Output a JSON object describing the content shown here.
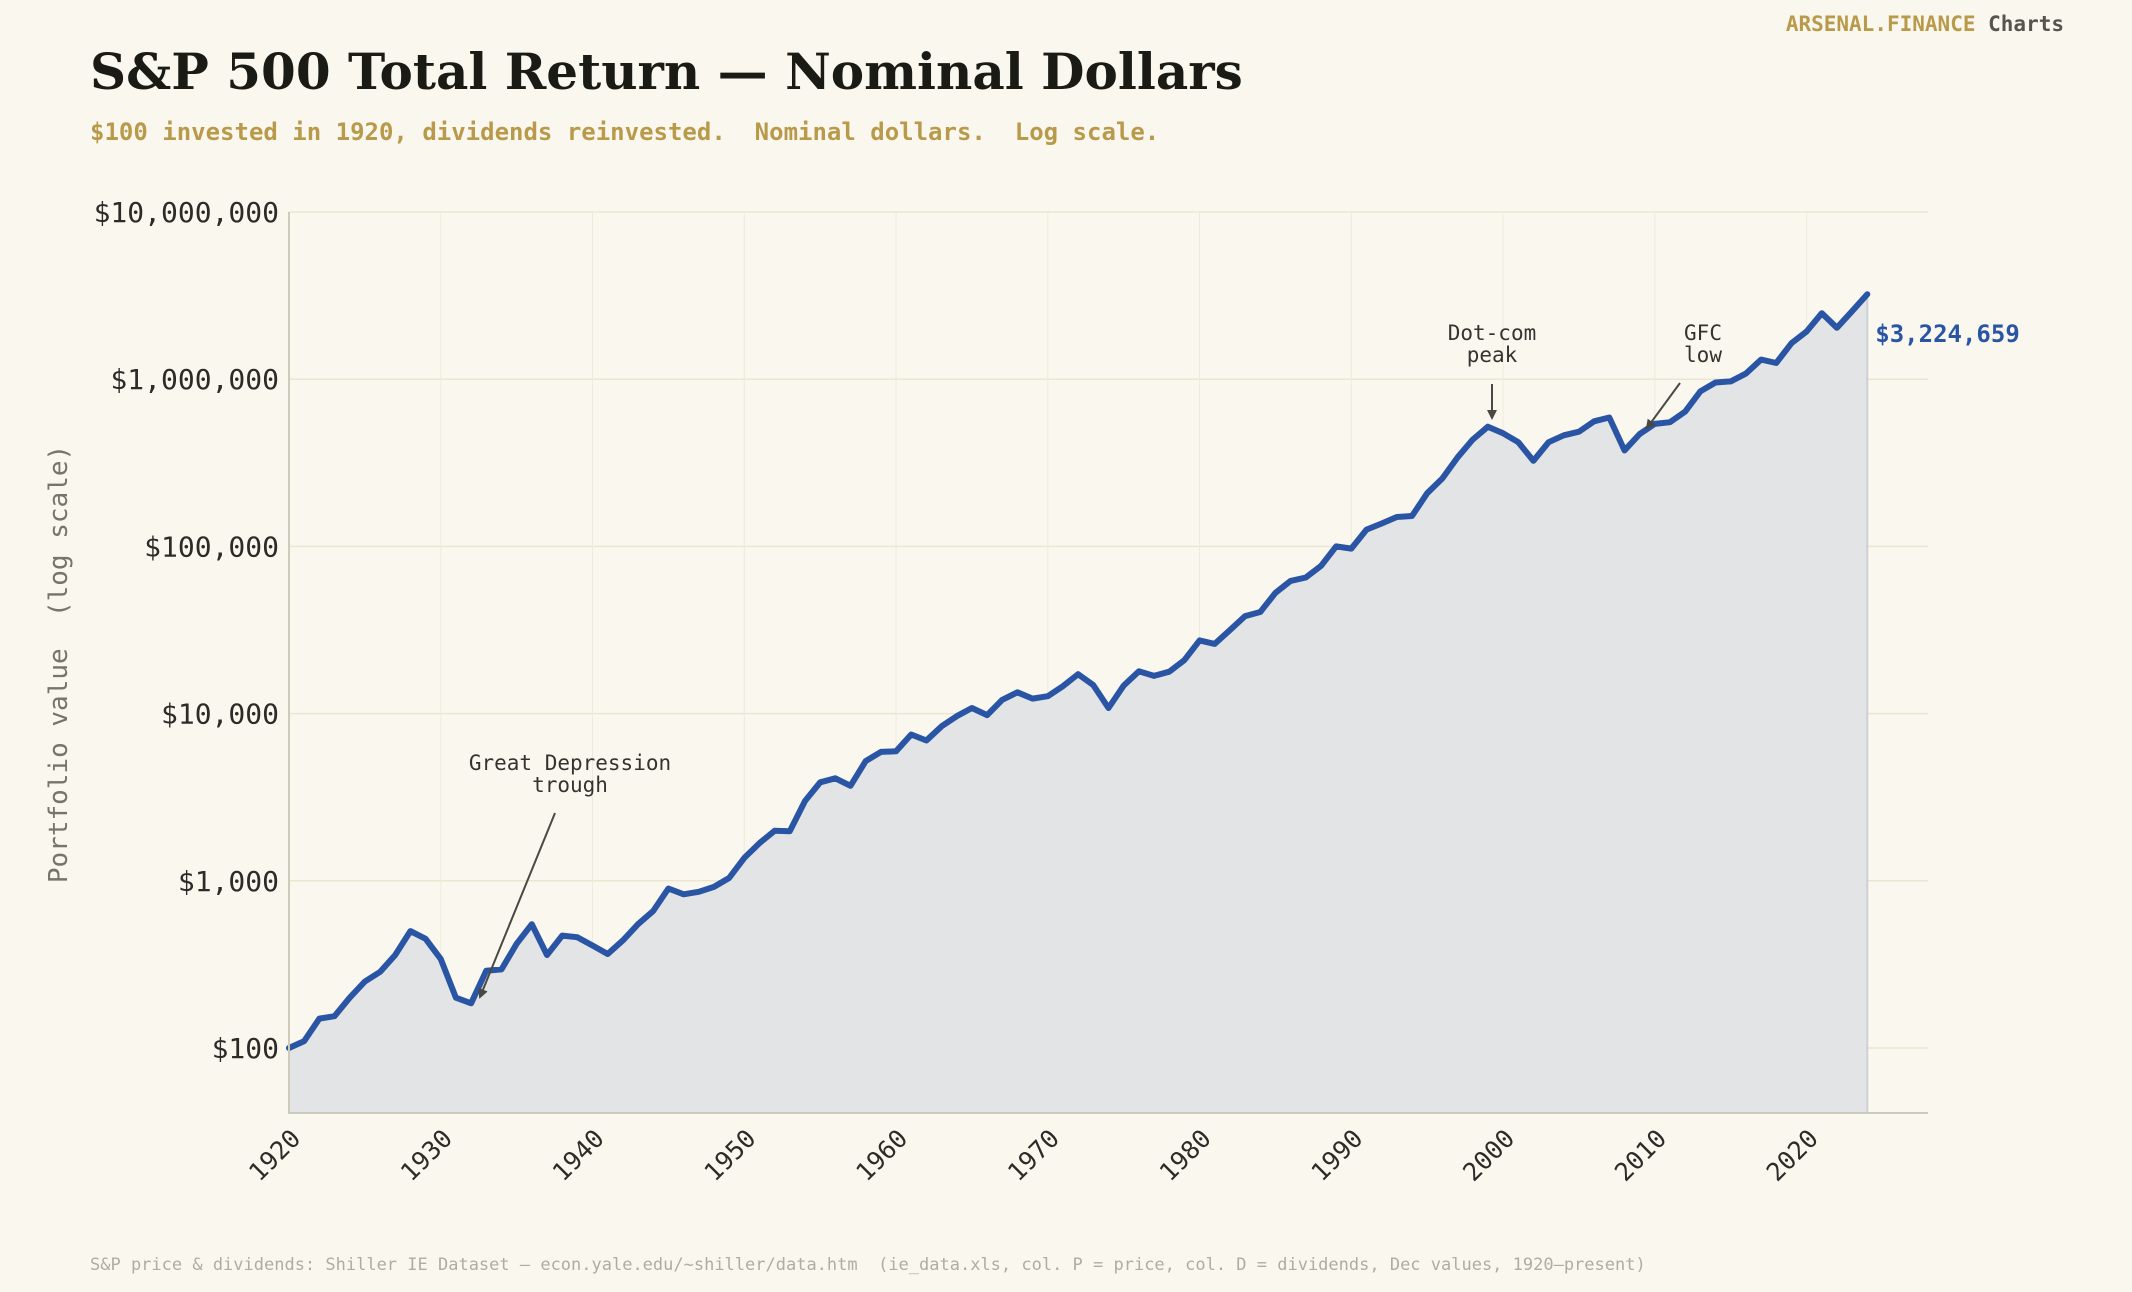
{
  "brand": {
    "name": "ARSENAL.FINANCE",
    "section": "Charts"
  },
  "title": "S&P 500 Total Return — Nominal Dollars",
  "subtitle": "$100 invested in 1920, dividends reinvested.  Nominal dollars.  Log scale.",
  "footer": "S&P price & dividends: Shiller IE Dataset – econ.yale.edu/~shiller/data.htm  (ie_data.xls, col. P = price, col. D = dividends, Dec values, 1920–present)",
  "colors": {
    "line": "#2a55a5",
    "fill": "#e3e4e6",
    "accent": "#b89a4a",
    "background": "#faf7ef"
  },
  "chart_data": {
    "type": "line",
    "ylabel": "Portfolio value  (log scale)",
    "yscale": "log",
    "xlim": [
      1920,
      2028
    ],
    "ylim": [
      40,
      10000000
    ],
    "xticks": [
      1920,
      1930,
      1940,
      1950,
      1960,
      1970,
      1980,
      1990,
      2000,
      2010,
      2020
    ],
    "xtick_labels": [
      "1920",
      "1930",
      "1940",
      "1950",
      "1960",
      "1970",
      "1980",
      "1990",
      "2000",
      "2010",
      "2020"
    ],
    "yticks": [
      100,
      1000,
      10000,
      100000,
      1000000,
      10000000
    ],
    "ytick_labels": [
      "$100",
      "$1,000",
      "$10,000",
      "$100,000",
      "$1,000,000",
      "$10,000,000"
    ],
    "grid": true,
    "end_label": "$3,224,659",
    "annotations": [
      {
        "label": "Great Depression\ntrough",
        "x": 1932,
        "y": 185
      },
      {
        "label": "Dot-com\npeak",
        "x": 1999,
        "y": 520000
      },
      {
        "label": "GFC\nlow",
        "x": 2009,
        "y": 470000
      }
    ],
    "series": [
      {
        "x": [
          1920,
          1921,
          1922,
          1923,
          1924,
          1925,
          1926,
          1927,
          1928,
          1929,
          1930,
          1931,
          1932,
          1933,
          1934,
          1935,
          1936,
          1937,
          1938,
          1939,
          1940,
          1941,
          1942,
          1943,
          1944,
          1945,
          1946,
          1947,
          1948,
          1949,
          1950,
          1951,
          1952,
          1953,
          1954,
          1955,
          1956,
          1957,
          1958,
          1959,
          1960,
          1961,
          1962,
          1963,
          1964,
          1965,
          1966,
          1967,
          1968,
          1969,
          1970,
          1971,
          1972,
          1973,
          1974,
          1975,
          1976,
          1977,
          1978,
          1979,
          1980,
          1981,
          1982,
          1983,
          1984,
          1985,
          1986,
          1987,
          1988,
          1989,
          1990,
          1991,
          1992,
          1993,
          1994,
          1995,
          1996,
          1997,
          1998,
          1999,
          2000,
          2001,
          2002,
          2003,
          2004,
          2005,
          2006,
          2007,
          2008,
          2009,
          2010,
          2011,
          2012,
          2013,
          2014,
          2015,
          2016,
          2017,
          2018,
          2019,
          2020,
          2021,
          2022,
          2023,
          2024
        ],
        "y": [
          100,
          110,
          150,
          155,
          200,
          250,
          285,
          360,
          500,
          450,
          340,
          200,
          185,
          290,
          295,
          420,
          550,
          360,
          470,
          460,
          410,
          365,
          440,
          550,
          660,
          900,
          830,
          860,
          920,
          1040,
          1370,
          1680,
          1990,
          1980,
          3000,
          3880,
          4100,
          3700,
          5200,
          5900,
          5950,
          7500,
          6900,
          8400,
          9650,
          10800,
          9800,
          12100,
          13400,
          12300,
          12700,
          14600,
          17200,
          14800,
          10800,
          14700,
          17900,
          16800,
          17800,
          20900,
          27400,
          26100,
          31600,
          38300,
          40500,
          52700,
          62200,
          65200,
          76400,
          100000,
          97000,
          126000,
          137000,
          150000,
          152000,
          208000,
          255000,
          340000,
          435000,
          520000,
          475000,
          420000,
          325000,
          420000,
          462000,
          485000,
          560000,
          590000,
          375000,
          470000,
          540000,
          553000,
          640000,
          846000,
          955000,
          970000,
          1080000,
          1310000,
          1250000,
          1640000,
          1930000,
          2480000,
          2030000,
          2550000,
          3224659
        ]
      }
    ]
  }
}
